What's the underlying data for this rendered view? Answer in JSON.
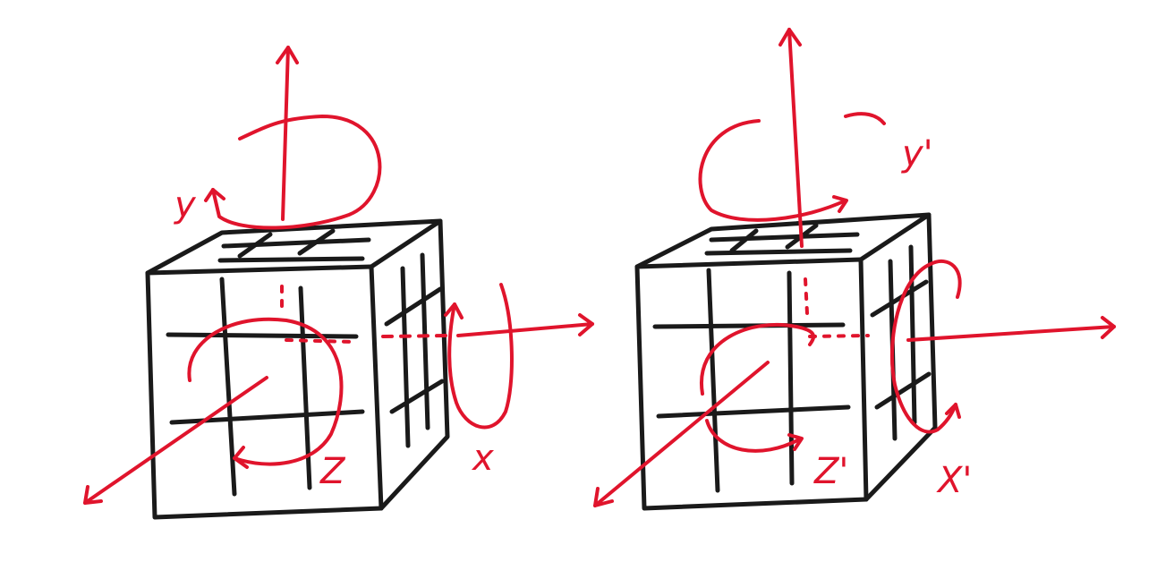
{
  "colors": {
    "cube_ink": "#1a1a1a",
    "axis_ink": "#e0142c",
    "background": "#ffffff"
  },
  "diagrams": [
    {
      "name": "original-rotations",
      "labels": {
        "x": "x",
        "y": "y",
        "z": "Z"
      }
    },
    {
      "name": "prime-rotations",
      "labels": {
        "x": "X'",
        "y": "y'",
        "z": "Z'"
      }
    }
  ]
}
